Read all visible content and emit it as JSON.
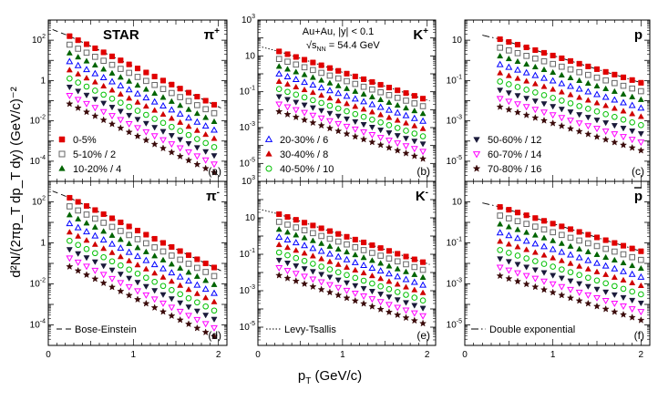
{
  "chart_data": {
    "type": "scatter",
    "experiment": "STAR",
    "collision": {
      "system": "Au+Au, |y| < 0.1",
      "energy_label": "√s",
      "energy_sub": "NN",
      "energy_value": " = 54.4 GeV"
    },
    "xlabel": {
      "main": "p",
      "sub": "T",
      "rest": " (GeV/c)"
    },
    "ylabel": "d²N/(2πp_T dp_T dy) (GeV/c)⁻²",
    "ylabel_parts": {
      "a": "d",
      "b": "N/(2πp",
      "c": "dp",
      "d": " dy) (GeV/",
      "e": "c",
      "f": ")"
    },
    "x_ticks": [
      "0",
      "1",
      "2"
    ],
    "x_range": [
      0,
      2.1
    ],
    "centralities": [
      {
        "label": "0-5%",
        "scale": 1,
        "marker": "square-filled",
        "color": "#e00000"
      },
      {
        "label": "5-10% / 2",
        "scale": 2,
        "marker": "square-open",
        "color": "#666666"
      },
      {
        "label": "10-20% / 4",
        "scale": 4,
        "marker": "triangle-filled",
        "color": "#006400"
      },
      {
        "label": "20-30% / 6",
        "scale": 6,
        "marker": "triangle-open",
        "color": "#0000ff"
      },
      {
        "label": "30-40% / 8",
        "scale": 8,
        "marker": "triangle-filled",
        "color": "#d00000"
      },
      {
        "label": "40-50% / 10",
        "scale": 10,
        "marker": "circle-open",
        "color": "#00c000"
      },
      {
        "label": "50-60% / 12",
        "scale": 12,
        "marker": "triangle-down-filled",
        "color": "#1a1a3a"
      },
      {
        "label": "60-70% / 14",
        "scale": 14,
        "marker": "triangle-down-open",
        "color": "#ff00ff"
      },
      {
        "label": "70-80% / 16",
        "scale": 16,
        "marker": "star-filled",
        "color": "#3a0a0a"
      }
    ],
    "fits": [
      {
        "label": "Bose-Einstein",
        "dash": "6,4"
      },
      {
        "label": "Levy-Tsallis",
        "dash": "1.5,2"
      },
      {
        "label": "Double exponential",
        "dash": "8,3,1.5,3"
      }
    ],
    "panels": [
      {
        "id": "a",
        "label": "(a)",
        "particle": "π",
        "charge": "+",
        "y_log_range": [
          -5,
          3
        ],
        "y_ticks": [
          -4,
          -2,
          0,
          2
        ],
        "pt_range": [
          0.25,
          2.0
        ],
        "norm_log": 2.2,
        "slope_log_per_gev": 2.0,
        "fit": 0,
        "fit_from": 0.0
      },
      {
        "id": "b",
        "label": "(b)",
        "particle": "K",
        "charge": "+",
        "y_log_range": [
          -6,
          3
        ],
        "y_ticks": [
          -5,
          -3,
          -1,
          1,
          3
        ],
        "pt_range": [
          0.25,
          2.0
        ],
        "norm_log": 1.25,
        "slope_log_per_gev": 1.55,
        "fit": 1,
        "fit_from": 0.0
      },
      {
        "id": "c",
        "label": "(c)",
        "particle": "p",
        "charge": "",
        "y_log_range": [
          -6,
          2
        ],
        "y_ticks": [
          -5,
          -3,
          -1,
          1
        ],
        "pt_range": [
          0.4,
          2.0
        ],
        "norm_log": 1.05,
        "slope_log_per_gev": 1.35,
        "fit": 2,
        "fit_from": 0.0
      },
      {
        "id": "d",
        "label": "(d)",
        "particle": "π",
        "charge": "-",
        "y_log_range": [
          -5,
          3
        ],
        "y_ticks": [
          -4,
          -2,
          0,
          2
        ],
        "pt_range": [
          0.25,
          2.0
        ],
        "norm_log": 2.2,
        "slope_log_per_gev": 2.0,
        "fit": 0,
        "fit_from": 0.0
      },
      {
        "id": "e",
        "label": "(e)",
        "particle": "K",
        "charge": "-",
        "y_log_range": [
          -6,
          3
        ],
        "y_ticks": [
          -5,
          -3,
          -1,
          1,
          3
        ],
        "pt_range": [
          0.25,
          2.0
        ],
        "norm_log": 1.2,
        "slope_log_per_gev": 1.55,
        "fit": 1,
        "fit_from": 0.0
      },
      {
        "id": "f",
        "label": "(f)",
        "particle": "p",
        "charge": "bar",
        "y_log_range": [
          -6,
          2
        ],
        "y_ticks": [
          -5,
          -3,
          -1,
          1
        ],
        "pt_range": [
          0.4,
          2.0
        ],
        "norm_log": 0.75,
        "slope_log_per_gev": 1.35,
        "fit": 2,
        "fit_from": 0.0
      }
    ]
  }
}
